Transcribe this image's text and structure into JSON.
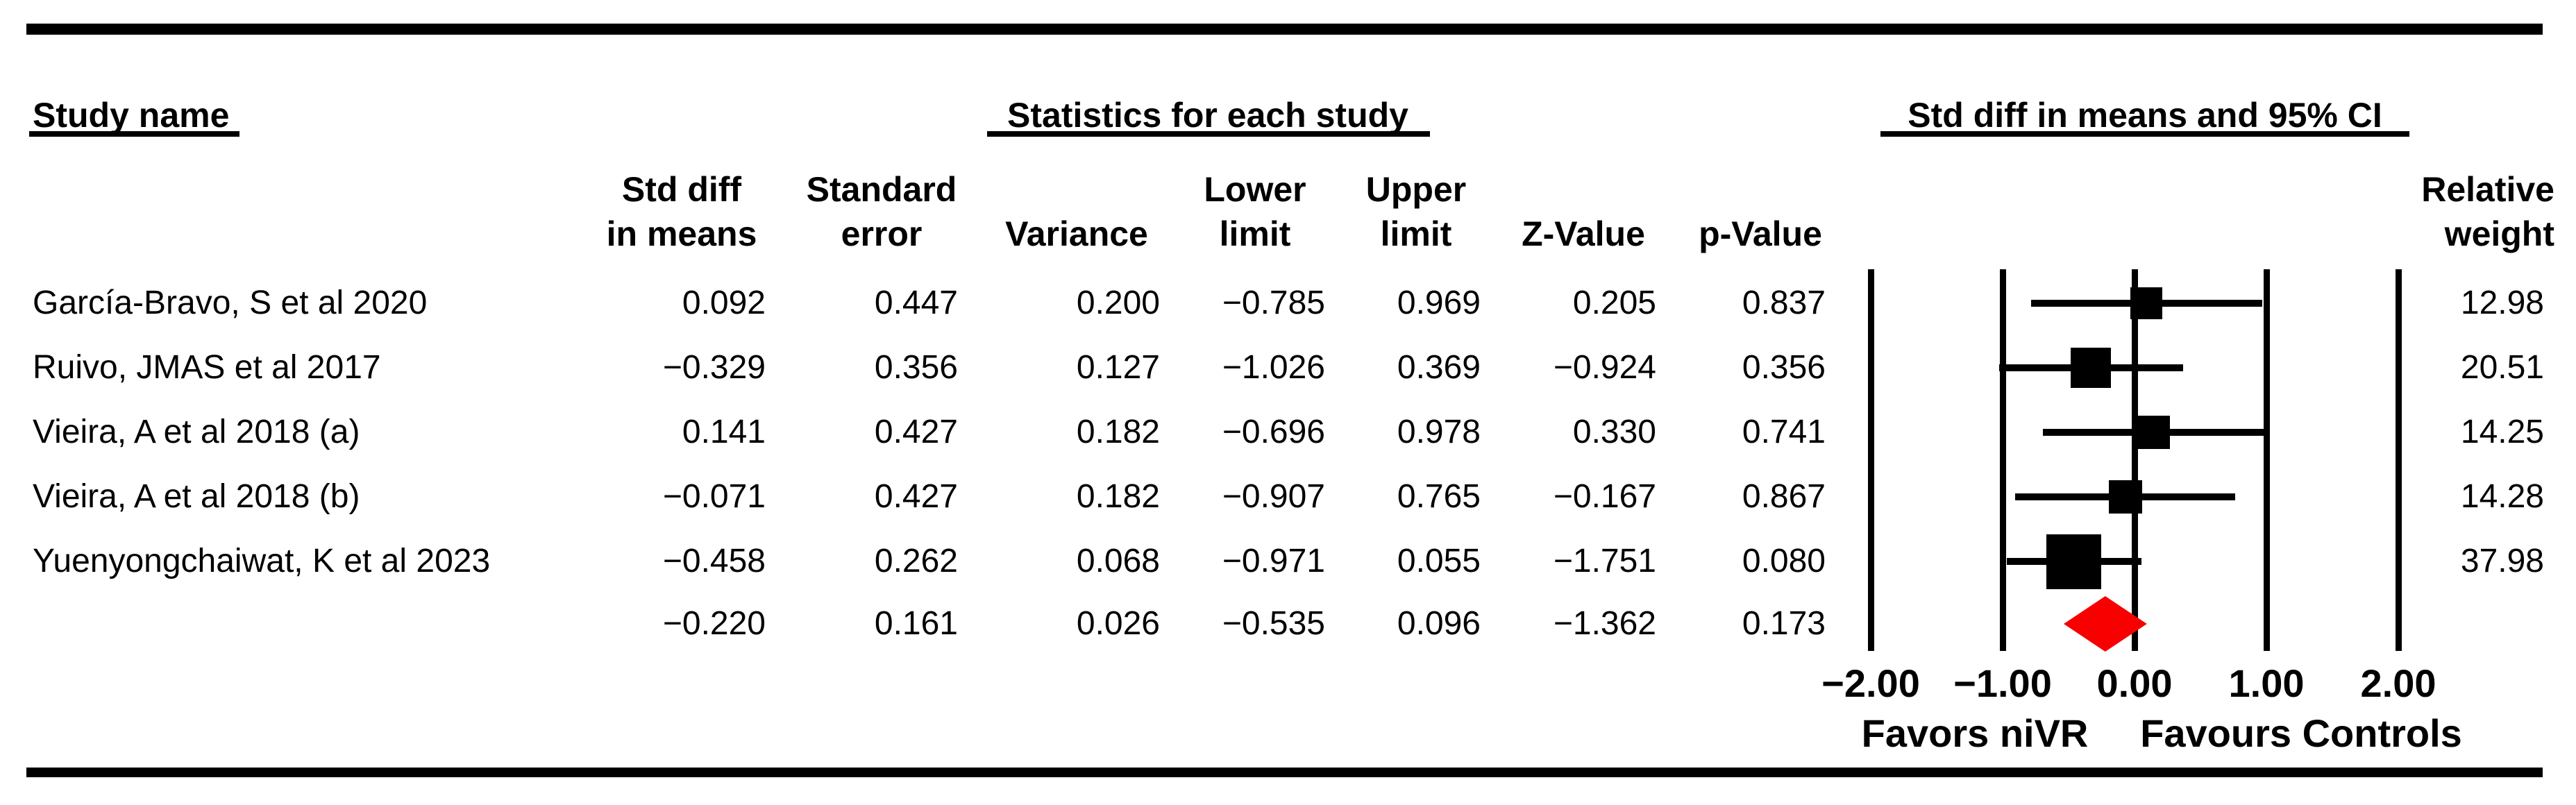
{
  "figure": {
    "headers": {
      "study_name": "Study name",
      "statistics_section": "Statistics for each study",
      "ci_section": "Std diff in means and 95% CI",
      "relative_weight_line1": "Relative",
      "relative_weight_line2": "weight"
    },
    "stat_columns": [
      {
        "line1": "Std diff",
        "line2": "in means"
      },
      {
        "line1": "Standard",
        "line2": "error"
      },
      {
        "line1": "",
        "line2": "Variance"
      },
      {
        "line1": "Lower",
        "line2": "limit"
      },
      {
        "line1": "Upper",
        "line2": "limit"
      },
      {
        "line1": "",
        "line2": "Z-Value"
      },
      {
        "line1": "",
        "line2": "p-Value"
      }
    ],
    "footer_left": "Favors niVR",
    "footer_right": "Favours Controls",
    "colors": {
      "ink": "#000000",
      "diamond": "#F90000",
      "background": "#ffffff"
    }
  },
  "table_rows": [
    {
      "study": "García-Bravo, S et al 2020",
      "values": [
        "0.092",
        "0.447",
        "0.200",
        "−0.785",
        "0.969",
        "0.205",
        "0.837"
      ],
      "weight": "12.98"
    },
    {
      "study": "Ruivo, JMAS et al 2017",
      "values": [
        "−0.329",
        "0.356",
        "0.127",
        "−1.026",
        "0.369",
        "−0.924",
        "0.356"
      ],
      "weight": "20.51"
    },
    {
      "study": "Vieira, A et al 2018 (a)",
      "values": [
        "0.141",
        "0.427",
        "0.182",
        "−0.696",
        "0.978",
        "0.330",
        "0.741"
      ],
      "weight": "14.25"
    },
    {
      "study": "Vieira, A et al 2018 (b)",
      "values": [
        "−0.071",
        "0.427",
        "0.182",
        "−0.907",
        "0.765",
        "−0.167",
        "0.867"
      ],
      "weight": "14.28"
    },
    {
      "study": "Yuenyongchaiwat, K et al 2023",
      "values": [
        "−0.458",
        "0.262",
        "0.068",
        "−0.971",
        "0.055",
        "−1.751",
        "0.080"
      ],
      "weight": "37.98"
    },
    {
      "study": "",
      "values": [
        "−0.220",
        "0.161",
        "0.026",
        "−0.535",
        "0.096",
        "−1.362",
        "0.173"
      ],
      "weight": ""
    }
  ],
  "chart_data": {
    "type": "scatter",
    "subtype": "forest-plot",
    "title": "Std diff in means and 95% CI",
    "xlabel": "Std diff in means",
    "xlim": [
      -2.0,
      2.0
    ],
    "xticks": [
      -2.0,
      -1.0,
      0.0,
      1.0,
      2.0
    ],
    "xtick_labels": [
      "−2.00",
      "−1.00",
      "0.00",
      "1.00",
      "2.00"
    ],
    "annotation_left": "Favors niVR",
    "annotation_right": "Favours Controls",
    "grid": "vertical-lines-at-ticks",
    "legend_position": "none",
    "series": [
      {
        "name": "García-Bravo, S et al 2020",
        "std_diff_in_means": 0.092,
        "standard_error": 0.447,
        "variance": 0.2,
        "lower_limit": -0.785,
        "upper_limit": 0.969,
        "z_value": 0.205,
        "p_value": 0.837,
        "relative_weight": 12.98,
        "marker": "black-square"
      },
      {
        "name": "Ruivo, JMAS et al 2017",
        "std_diff_in_means": -0.329,
        "standard_error": 0.356,
        "variance": 0.127,
        "lower_limit": -1.026,
        "upper_limit": 0.369,
        "z_value": -0.924,
        "p_value": 0.356,
        "relative_weight": 20.51,
        "marker": "black-square"
      },
      {
        "name": "Vieira, A et al 2018 (a)",
        "std_diff_in_means": 0.141,
        "standard_error": 0.427,
        "variance": 0.182,
        "lower_limit": -0.696,
        "upper_limit": 0.978,
        "z_value": 0.33,
        "p_value": 0.741,
        "relative_weight": 14.25,
        "marker": "black-square"
      },
      {
        "name": "Vieira, A et al 2018 (b)",
        "std_diff_in_means": -0.071,
        "standard_error": 0.427,
        "variance": 0.182,
        "lower_limit": -0.907,
        "upper_limit": 0.765,
        "z_value": -0.167,
        "p_value": 0.867,
        "relative_weight": 14.28,
        "marker": "black-square"
      },
      {
        "name": "Yuenyongchaiwat, K et al 2023",
        "std_diff_in_means": -0.458,
        "standard_error": 0.262,
        "variance": 0.068,
        "lower_limit": -0.971,
        "upper_limit": 0.055,
        "z_value": -1.751,
        "p_value": 0.08,
        "relative_weight": 37.98,
        "marker": "black-square"
      }
    ],
    "summary": {
      "std_diff_in_means": -0.22,
      "standard_error": 0.161,
      "variance": 0.026,
      "lower_limit": -0.535,
      "upper_limit": 0.096,
      "z_value": -1.362,
      "p_value": 0.173,
      "marker": "red-diamond"
    }
  }
}
